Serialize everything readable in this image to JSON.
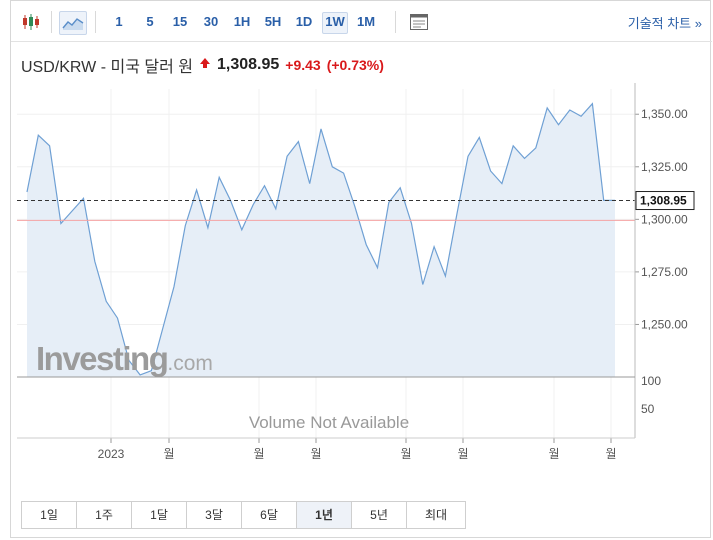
{
  "toolbar": {
    "intervals": [
      "1",
      "5",
      "15",
      "30",
      "1H",
      "5H",
      "1D",
      "1W",
      "1M"
    ],
    "active_interval": "1W",
    "technical_link": "기술적 차트 »",
    "chart_type_icon": "candlestick-icon",
    "area_icon": "area-chart-icon",
    "settings_icon": "indicator-panel-icon"
  },
  "header": {
    "pair": "USD/KRW - 미국 달러 원",
    "price": "1,308.95",
    "change": "+9.43",
    "change_pct": "(+0.73%)"
  },
  "watermark": {
    "brand": "Investing",
    "suffix": ".com"
  },
  "volume_text": "Volume Not Available",
  "colors": {
    "line": "#6fa0d4",
    "fill": "#e6eef7",
    "up": "#d9191b",
    "link": "#2a5fa8",
    "ref_line": "#f5a3a3"
  },
  "chart_data": {
    "type": "area",
    "y_ticks": [
      "1,350.00",
      "1,325.00",
      "1,300.00",
      "1,275.00",
      "1,250.00"
    ],
    "ylim": [
      1225,
      1362
    ],
    "current_label": "1,308.95",
    "current_value": 1308.95,
    "reference_value": 1299.5,
    "volume_ticks": [
      "100",
      "50"
    ],
    "x_labels": [
      "2023",
      "월",
      "월",
      "월",
      "월",
      "월",
      "월",
      "월"
    ],
    "values": [
      1313,
      1340,
      1335,
      1298,
      1304,
      1310,
      1280,
      1261,
      1253,
      1233,
      1226,
      1228,
      1248,
      1268,
      1297,
      1314,
      1296,
      1320,
      1309,
      1295,
      1307,
      1316,
      1305,
      1330,
      1337,
      1317,
      1343,
      1325,
      1322,
      1306,
      1288,
      1277,
      1308,
      1315,
      1298,
      1269,
      1287,
      1273,
      1302,
      1330,
      1339,
      1323,
      1317,
      1335,
      1329,
      1334,
      1353,
      1345,
      1352,
      1349,
      1355,
      1309,
      1309
    ]
  },
  "ranges": {
    "items": [
      "1일",
      "1주",
      "1달",
      "3달",
      "6달",
      "1년",
      "5년",
      "최대"
    ],
    "active": "1년"
  }
}
